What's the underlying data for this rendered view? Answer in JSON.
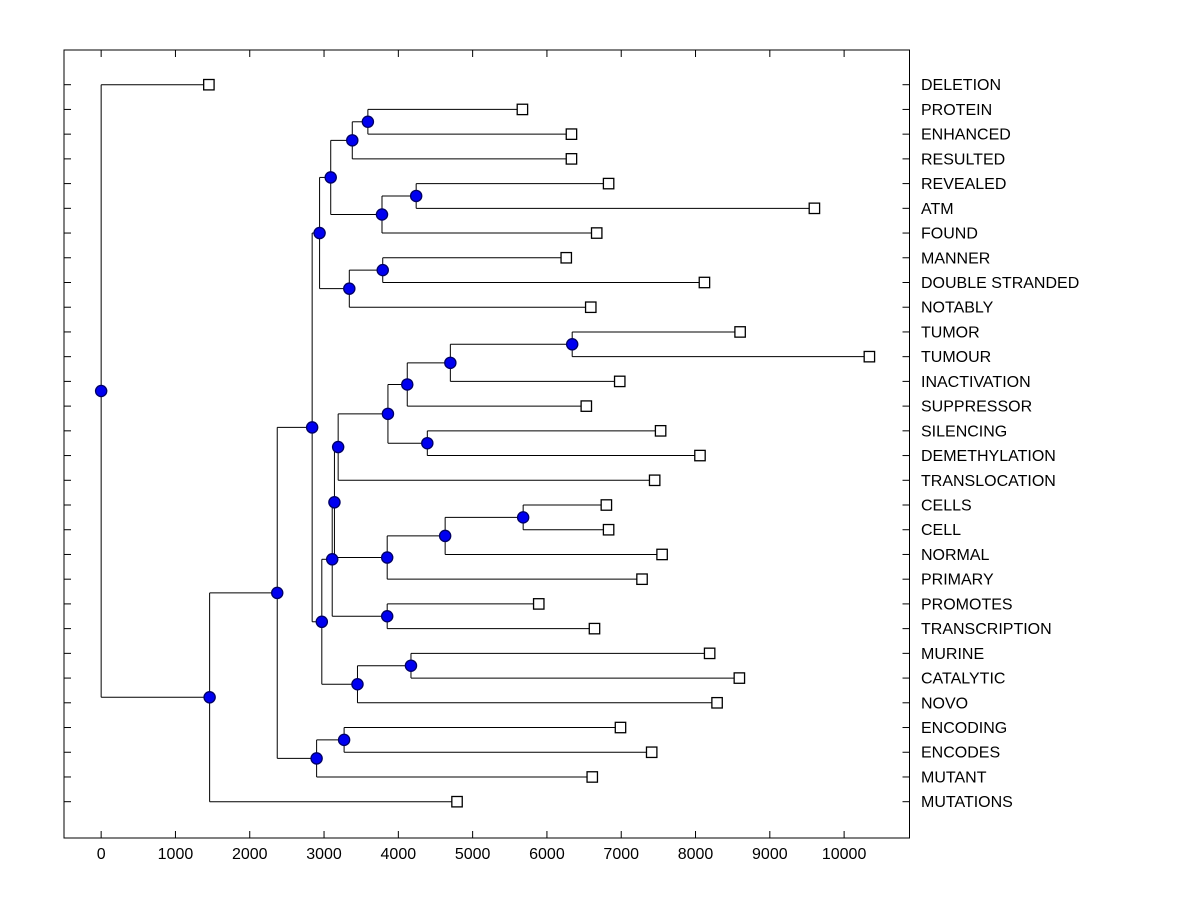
{
  "figure": {
    "background": "#ffffff",
    "plot_background": "#ffffff",
    "line_color": "#000000",
    "axis_color": "#000000",
    "text_color": "#000000",
    "branch_node_fill": "#0000f0",
    "branch_node_edge": "#000066",
    "leaf_node_fill": "#ffffff",
    "leaf_node_edge": "#000000"
  },
  "chart_data": {
    "type": "dendrogram",
    "orientation": "left-to-right",
    "title": "",
    "xlabel": "",
    "ylabel": "",
    "grid": false,
    "xlim": [
      -500,
      10880
    ],
    "xticks": [
      0,
      1000,
      2000,
      3000,
      4000,
      5000,
      6000,
      7000,
      8000,
      9000,
      10000
    ],
    "xtick_labels": [
      "0",
      "1000",
      "2000",
      "3000",
      "4000",
      "5000",
      "6000",
      "7000",
      "8000",
      "9000",
      "10000"
    ],
    "leaves": [
      {
        "id": "L0",
        "label": "DELETION",
        "x": 1450
      },
      {
        "id": "L1",
        "label": "PROTEIN",
        "x": 5670
      },
      {
        "id": "L2",
        "label": "ENHANCED",
        "x": 6330
      },
      {
        "id": "L3",
        "label": "RESULTED",
        "x": 6330
      },
      {
        "id": "L4",
        "label": "REVEALED",
        "x": 6830
      },
      {
        "id": "L5",
        "label": "ATM",
        "x": 9600
      },
      {
        "id": "L6",
        "label": "FOUND",
        "x": 6670
      },
      {
        "id": "L7",
        "label": "MANNER",
        "x": 6260
      },
      {
        "id": "L8",
        "label": "DOUBLE STRANDED",
        "x": 8120
      },
      {
        "id": "L9",
        "label": "NOTABLY",
        "x": 6590
      },
      {
        "id": "L10",
        "label": "TUMOR",
        "x": 8600
      },
      {
        "id": "L11",
        "label": "TUMOUR",
        "x": 10340
      },
      {
        "id": "L12",
        "label": "INACTIVATION",
        "x": 6980
      },
      {
        "id": "L13",
        "label": "SUPPRESSOR",
        "x": 6530
      },
      {
        "id": "L14",
        "label": "SILENCING",
        "x": 7530
      },
      {
        "id": "L15",
        "label": "DEMETHYLATION",
        "x": 8060
      },
      {
        "id": "L16",
        "label": "TRANSLOCATION",
        "x": 7450
      },
      {
        "id": "L17",
        "label": "CELLS",
        "x": 6800
      },
      {
        "id": "L18",
        "label": "CELL",
        "x": 6830
      },
      {
        "id": "L19",
        "label": "NORMAL",
        "x": 7550
      },
      {
        "id": "L20",
        "label": "PRIMARY",
        "x": 7280
      },
      {
        "id": "L21",
        "label": "PROMOTES",
        "x": 5890
      },
      {
        "id": "L22",
        "label": "TRANSCRIPTION",
        "x": 6640
      },
      {
        "id": "L23",
        "label": "MURINE",
        "x": 8190
      },
      {
        "id": "L24",
        "label": "CATALYTIC",
        "x": 8590
      },
      {
        "id": "L25",
        "label": "NOVO",
        "x": 8290
      },
      {
        "id": "L26",
        "label": "ENCODING",
        "x": 6990
      },
      {
        "id": "L27",
        "label": "ENCODES",
        "x": 7410
      },
      {
        "id": "L28",
        "label": "MUTANT",
        "x": 6610
      },
      {
        "id": "L29",
        "label": "MUTATIONS",
        "x": 4790
      }
    ],
    "nodes": [
      {
        "id": "N_pe",
        "x": 3590,
        "children": [
          "L1",
          "L2"
        ]
      },
      {
        "id": "N_per",
        "x": 3380,
        "children": [
          "N_pe",
          "L3"
        ]
      },
      {
        "id": "N_ra",
        "x": 4240,
        "children": [
          "L4",
          "L5"
        ]
      },
      {
        "id": "N_raf",
        "x": 3780,
        "children": [
          "N_ra",
          "L6"
        ]
      },
      {
        "id": "N_top1",
        "x": 3090,
        "children": [
          "N_per",
          "N_raf"
        ]
      },
      {
        "id": "N_md",
        "x": 3790,
        "children": [
          "L7",
          "L8"
        ]
      },
      {
        "id": "N_mdn",
        "x": 3340,
        "children": [
          "N_md",
          "L9"
        ]
      },
      {
        "id": "N_top",
        "x": 2940,
        "children": [
          "N_top1",
          "N_mdn"
        ]
      },
      {
        "id": "N_tt",
        "x": 6340,
        "children": [
          "L10",
          "L11"
        ]
      },
      {
        "id": "N_tti",
        "x": 4700,
        "children": [
          "N_tt",
          "L12"
        ]
      },
      {
        "id": "N_ttis",
        "x": 4120,
        "children": [
          "N_tti",
          "L13"
        ]
      },
      {
        "id": "N_sd",
        "x": 4390,
        "children": [
          "L14",
          "L15"
        ]
      },
      {
        "id": "N_mid1",
        "x": 3860,
        "children": [
          "N_ttis",
          "N_sd"
        ]
      },
      {
        "id": "N_mid2",
        "x": 3190,
        "children": [
          "N_mid1",
          "L16"
        ]
      },
      {
        "id": "N_cc",
        "x": 5680,
        "children": [
          "L17",
          "L18"
        ]
      },
      {
        "id": "N_ccn",
        "x": 4630,
        "children": [
          "N_cc",
          "L19"
        ]
      },
      {
        "id": "N_ccnp",
        "x": 3850,
        "children": [
          "N_ccn",
          "L20"
        ]
      },
      {
        "id": "N_midA",
        "x": 3140,
        "children": [
          "N_mid2",
          "N_ccnp"
        ]
      },
      {
        "id": "N_pt",
        "x": 3850,
        "children": [
          "L21",
          "L22"
        ]
      },
      {
        "id": "N_midB",
        "x": 3110,
        "children": [
          "N_midA",
          "N_pt"
        ]
      },
      {
        "id": "N_mc",
        "x": 4170,
        "children": [
          "L23",
          "L24"
        ]
      },
      {
        "id": "N_mcn",
        "x": 3450,
        "children": [
          "N_mc",
          "L25"
        ]
      },
      {
        "id": "N_mid",
        "x": 2970,
        "children": [
          "N_midB",
          "N_mcn"
        ]
      },
      {
        "id": "N_big",
        "x": 2840,
        "children": [
          "N_top",
          "N_mid"
        ]
      },
      {
        "id": "N_ee",
        "x": 3270,
        "children": [
          "L26",
          "L27"
        ]
      },
      {
        "id": "N_eem",
        "x": 2900,
        "children": [
          "N_ee",
          "L28"
        ]
      },
      {
        "id": "N_low",
        "x": 2370,
        "children": [
          "N_big",
          "N_eem"
        ]
      },
      {
        "id": "N_r1",
        "x": 1460,
        "children": [
          "N_low",
          "L29"
        ]
      },
      {
        "id": "N_root",
        "x": 0,
        "children": [
          "L0",
          "N_r1"
        ]
      }
    ]
  }
}
